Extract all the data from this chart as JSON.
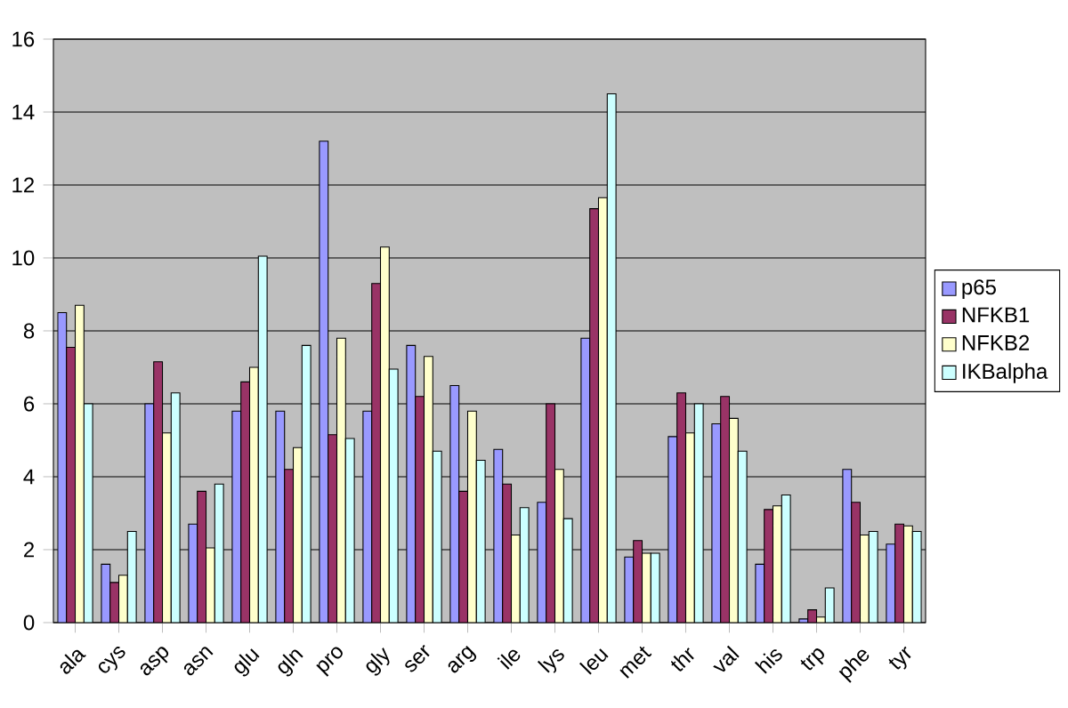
{
  "chart_data": {
    "type": "bar",
    "categories": [
      "ala",
      "cys",
      "asp",
      "asn",
      "glu",
      "gln",
      "pro",
      "gly",
      "ser",
      "arg",
      "ile",
      "lys",
      "leu",
      "met",
      "thr",
      "val",
      "his",
      "trp",
      "phe",
      "tyr"
    ],
    "series": [
      {
        "name": "p65",
        "color": "#9999ff",
        "values": [
          8.5,
          1.6,
          6.0,
          2.7,
          5.8,
          5.8,
          13.2,
          5.8,
          7.6,
          6.5,
          4.75,
          3.3,
          7.8,
          1.8,
          5.1,
          5.45,
          1.6,
          0.1,
          4.2,
          2.15
        ]
      },
      {
        "name": "NFKB1",
        "color": "#993366",
        "values": [
          7.55,
          1.1,
          7.15,
          3.6,
          6.6,
          4.2,
          5.15,
          9.3,
          6.2,
          3.6,
          3.8,
          6.0,
          11.35,
          2.25,
          6.3,
          6.2,
          3.1,
          0.35,
          3.3,
          2.7
        ]
      },
      {
        "name": "NFKB2",
        "color": "#ffffcc",
        "values": [
          8.7,
          1.3,
          5.2,
          2.05,
          7.0,
          4.8,
          7.8,
          10.3,
          7.3,
          5.8,
          2.4,
          4.2,
          11.65,
          1.9,
          5.2,
          5.6,
          3.2,
          0.15,
          2.4,
          2.65
        ]
      },
      {
        "name": "IKBalpha",
        "color": "#ccffff",
        "values": [
          6.0,
          2.5,
          6.3,
          3.8,
          10.05,
          7.6,
          5.05,
          6.95,
          4.7,
          4.45,
          3.15,
          2.85,
          14.5,
          1.9,
          6.0,
          4.7,
          3.5,
          0.95,
          2.5,
          2.5
        ]
      }
    ],
    "ylim": [
      0,
      16
    ],
    "yticks": [
      0,
      2,
      4,
      6,
      8,
      10,
      12,
      14,
      16
    ],
    "grid": "y",
    "legend": "right"
  }
}
